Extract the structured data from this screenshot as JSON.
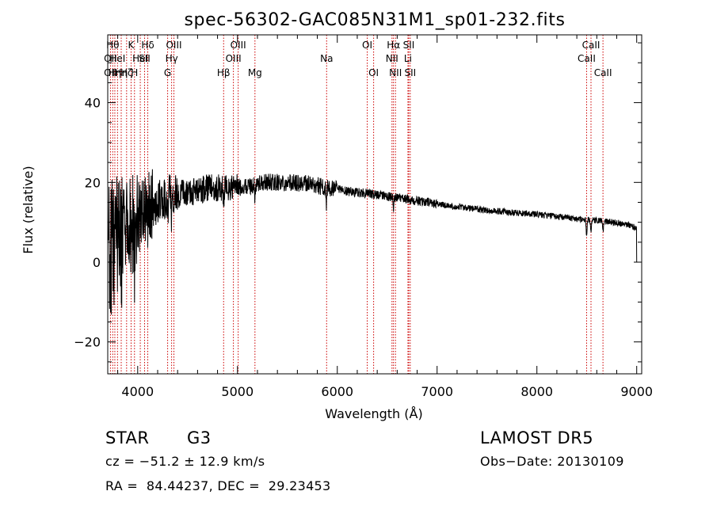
{
  "chart_data": {
    "type": "line",
    "title": "spec-56302-GAC085N31M1_sp01-232.fits",
    "xlabel": "Wavelength (Å)",
    "ylabel": "Flux (relative)",
    "xlim": [
      3700,
      9050
    ],
    "ylim": [
      -28,
      57
    ],
    "xticks": [
      {
        "value": 4000,
        "label": "4000"
      },
      {
        "value": 5000,
        "label": "5000"
      },
      {
        "value": 6000,
        "label": "6000"
      },
      {
        "value": 7000,
        "label": "7000"
      },
      {
        "value": 8000,
        "label": "8000"
      },
      {
        "value": 9000,
        "label": "9000"
      }
    ],
    "yticks": [
      {
        "value": -20,
        "label": "−20"
      },
      {
        "value": 0,
        "label": "0"
      },
      {
        "value": 20,
        "label": "20"
      },
      {
        "value": 40,
        "label": "40"
      }
    ],
    "grid": false,
    "line_color": "#000000",
    "marker_color": "#cc0000",
    "continuum": {
      "x": [
        3700,
        3800,
        3900,
        4000,
        4100,
        4200,
        4300,
        4500,
        4700,
        4900,
        5100,
        5300,
        5500,
        5700,
        5900,
        6100,
        6300,
        6500,
        6700,
        6900,
        7100,
        7300,
        7500,
        7700,
        7900,
        8100,
        8300,
        8500,
        8700,
        8900,
        9000
      ],
      "y": [
        2,
        5,
        8,
        11,
        14,
        15,
        16.5,
        17.5,
        18.5,
        18.5,
        19,
        20,
        20,
        19.8,
        18.5,
        17.8,
        17.2,
        16.5,
        15.8,
        15,
        14.2,
        13.6,
        13,
        12.6,
        12.2,
        11.7,
        11.2,
        10.6,
        10.2,
        9.6,
        8.5
      ]
    },
    "absorption_features": [
      {
        "x": 3934,
        "depth": 8
      },
      {
        "x": 3968,
        "depth": 8
      },
      {
        "x": 4101,
        "depth": 4
      },
      {
        "x": 4300,
        "depth": 5
      },
      {
        "x": 4340,
        "depth": 4
      },
      {
        "x": 4861,
        "depth": 3
      },
      {
        "x": 5175,
        "depth": 3
      },
      {
        "x": 5890,
        "depth": 4
      },
      {
        "x": 6563,
        "depth": 2.5
      },
      {
        "x": 8498,
        "depth": 4
      },
      {
        "x": 8542,
        "depth": 3
      },
      {
        "x": 8662,
        "depth": 3
      }
    ],
    "lines": [
      {
        "x": 3727,
        "label": "OII",
        "row": 2
      },
      {
        "x": 3727,
        "label": "OII",
        "row": 3
      },
      {
        "x": 3750,
        "label": "Hθ",
        "row": 1
      },
      {
        "x": 3771,
        "label": "Hη",
        "row": 3
      },
      {
        "x": 3798,
        "label": "HeI",
        "row": 2
      },
      {
        "x": 3835,
        "label": "Hη",
        "row": 3
      },
      {
        "x": 3889,
        "label": "Hζ",
        "row": 3
      },
      {
        "x": 3934,
        "label": "K",
        "row": 1
      },
      {
        "x": 3968,
        "label": "H",
        "row": 3
      },
      {
        "x": 4026,
        "label": "HeI",
        "row": 2
      },
      {
        "x": 4069,
        "label": "SII",
        "row": 2
      },
      {
        "x": 4101,
        "label": "Hδ",
        "row": 1
      },
      {
        "x": 4300,
        "label": "G",
        "row": 3
      },
      {
        "x": 4340,
        "label": "Hγ",
        "row": 2
      },
      {
        "x": 4363,
        "label": "OIII",
        "row": 1
      },
      {
        "x": 4861,
        "label": "Hβ",
        "row": 3
      },
      {
        "x": 4959,
        "label": "OIII",
        "row": 2
      },
      {
        "x": 5007,
        "label": "OIII",
        "row": 1
      },
      {
        "x": 5175,
        "label": "Mg",
        "row": 3
      },
      {
        "x": 5893,
        "label": "Na",
        "row": 2
      },
      {
        "x": 6300,
        "label": "OI",
        "row": 1
      },
      {
        "x": 6364,
        "label": "OI",
        "row": 3
      },
      {
        "x": 6548,
        "label": "NII",
        "row": 2
      },
      {
        "x": 6563,
        "label": "Hα",
        "row": 1
      },
      {
        "x": 6583,
        "label": "NII",
        "row": 3
      },
      {
        "x": 6708,
        "label": "Li",
        "row": 2
      },
      {
        "x": 6716,
        "label": "SII",
        "row": 1
      },
      {
        "x": 6731,
        "label": "SII",
        "row": 3
      },
      {
        "x": 8498,
        "label": "CaII",
        "row": 2
      },
      {
        "x": 8542,
        "label": "CaII",
        "row": 1
      },
      {
        "x": 8662,
        "label": "CaII",
        "row": 3
      }
    ]
  },
  "info": {
    "class": "STAR",
    "subclass": "G3",
    "survey": "LAMOST DR5",
    "redshift": "cz = −51.2 ± 12.9 km/s",
    "obs_date": "Obs−Date: 20130109",
    "coords": "RA =  84.44237, DEC =  29.23453"
  }
}
